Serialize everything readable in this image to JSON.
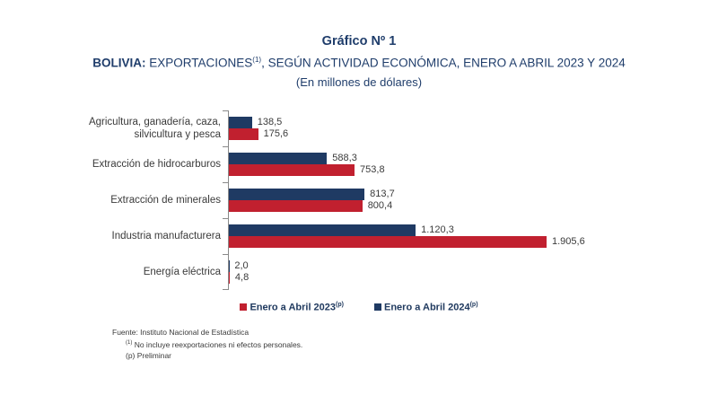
{
  "header": {
    "title": "Gráfico Nº 1",
    "subtitle_bold": "BOLIVIA:",
    "subtitle_mid": " EXPORTACIONES",
    "subtitle_sup": "(1)",
    "subtitle_tail": ", SEGÚN ACTIVIDAD ECONÓMICA, ENERO A ABRIL 2023 Y 2024",
    "units": "(En millones de dólares)"
  },
  "colors": {
    "navy": "#1f3a63",
    "red": "#c1202f",
    "title_blue": "#1f3d6b",
    "axis_gray": "#8a8a8a",
    "text_dark": "#3a3a3a"
  },
  "chart_data": {
    "type": "bar",
    "orientation": "horizontal",
    "title": "Gráfico Nº 1 — BOLIVIA: EXPORTACIONES(1), SEGÚN ACTIVIDAD ECONÓMICA, ENERO A ABRIL 2023 Y 2024",
    "xlabel": "En millones de dólares",
    "xlim": [
      0,
      2000
    ],
    "grid": false,
    "legend_position": "bottom",
    "categories": [
      [
        "Agricultura, ganadería, caza,",
        "silvicultura y pesca"
      ],
      [
        "Extracción de hidrocarburos"
      ],
      [
        "Extracción de minerales"
      ],
      [
        "Industria manufacturera"
      ],
      [
        "Energía eléctrica"
      ]
    ],
    "series": [
      {
        "name": "Enero a Abril 2024(p)",
        "color": "#1f3a63",
        "values": [
          138.5,
          588.3,
          813.7,
          1120.3,
          2.0
        ],
        "value_labels": [
          "138,5",
          "588,3",
          "813,7",
          "1.120,3",
          "2,0"
        ]
      },
      {
        "name": "Enero a Abril 2023(p)",
        "color": "#c1202f",
        "values": [
          175.6,
          753.8,
          800.4,
          1905.6,
          4.8
        ],
        "value_labels": [
          "175,6",
          "753,8",
          "800,4",
          "1.905,6",
          "4,8"
        ]
      }
    ],
    "legend": [
      {
        "label": "Enero a Abril 2023",
        "sup": "(p)",
        "color": "#c1202f"
      },
      {
        "label": "Enero a Abril 2024",
        "sup": "(p)",
        "color": "#1f3a63"
      }
    ]
  },
  "footer": {
    "source": "Fuente: Instituto Nacional de Estadística",
    "note1_sup": "(1)",
    "note1": " No incluye reexportaciones ni efectos personales.",
    "note2": "(p) Preliminar"
  }
}
